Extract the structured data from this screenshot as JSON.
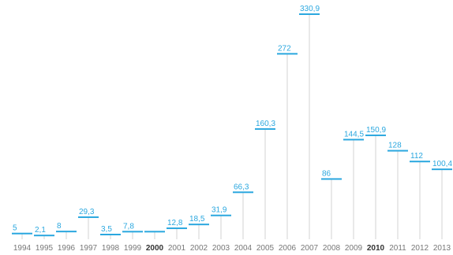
{
  "chart_data": {
    "type": "bar",
    "title": "",
    "xlabel": "",
    "ylabel": "",
    "categories": [
      "1994",
      "1995",
      "1996",
      "1997",
      "1998",
      "1999",
      "2000",
      "2001",
      "2002",
      "2003",
      "2004",
      "2005",
      "2006",
      "2007",
      "2008",
      "2009",
      "2010",
      "2011",
      "2012",
      "2013"
    ],
    "values": [
      5,
      2.1,
      8,
      29.3,
      3.5,
      7.8,
      7.8,
      12.8,
      18.5,
      31.9,
      66.3,
      160.3,
      272,
      330.9,
      86,
      144.5,
      150.9,
      128,
      112,
      100.4
    ],
    "value_labels": [
      "5",
      "2,1",
      "8",
      "29,3",
      "3,5",
      "7,8",
      "",
      "12,8",
      "18,5",
      "31,9",
      "66,3",
      "160,3",
      "272",
      "330,9",
      "86",
      "144,5",
      "150,9",
      "128",
      "112",
      "100,4"
    ],
    "bold_categories": [
      "2000",
      "2010"
    ],
    "ylim": [
      0,
      330.9
    ],
    "grid": false,
    "legend": "none"
  },
  "colors": {
    "accent": "#2aa7df",
    "stem": "#d3d3d3",
    "year_text": "#777777",
    "year_bold_text": "#333333"
  }
}
